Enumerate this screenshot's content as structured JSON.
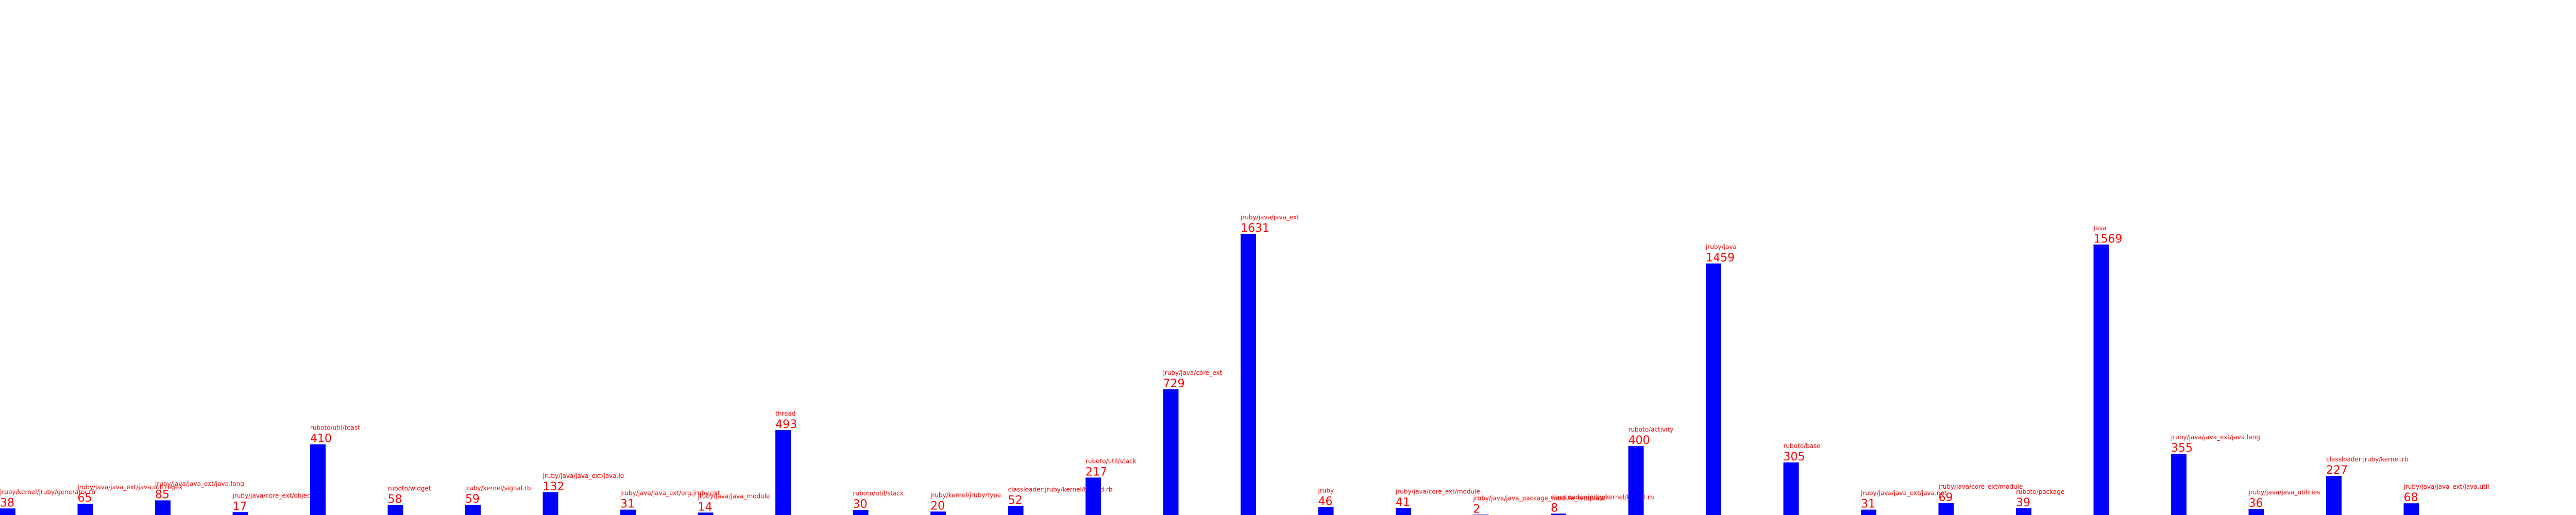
{
  "chart_data": {
    "type": "bar",
    "categories": [
      "jruby/kernel/jruby/generator.rb",
      "jruby/java/java_ext/java.util.regex",
      "jruby/java/java_ext/java.lang",
      "jruby/java/core_ext/object",
      "ruboto/util/toast",
      "ruboto/widget",
      "jruby/kernel/signal.rb",
      "jruby/java/java_ext/java.io",
      "jruby/java/java_ext/org.jruby.ext",
      "jruby/java/java_module",
      "thread",
      "ruboto/util/stack",
      "jruby/kernel/jruby/type",
      "classloader:jruby/kernel/thread.rb",
      "ruboto/util/stack",
      "jruby/java/core_ext",
      "jruby/java/java_ext",
      "jruby",
      "jruby/java/core_ext/module",
      "jruby/java/java_package_module_template",
      "classloader:jruby/kernel/kernel.rb",
      "ruboto/activity",
      "jruby/java",
      "ruboto/base",
      "jruby/java/java_ext/java.net",
      "jruby/java/core_ext/module",
      "ruboto/package",
      "java",
      "jruby/java/java_ext/java.lang",
      "jruby/java/java_utilities",
      "classloader:jruby/kernel.rb",
      "jruby/java/java_ext/java.util"
    ],
    "series": [
      {
        "values": [
          38,
          65,
          85,
          17,
          410,
          58,
          59,
          132,
          31,
          14,
          493,
          30,
          20,
          52,
          217,
          729,
          1631,
          46,
          41,
          2,
          8,
          400,
          1459,
          305,
          31,
          69,
          39,
          1569,
          355,
          36,
          227,
          68
        ]
      }
    ],
    "bar_color": "#0000ff",
    "label_color": "#ff0000",
    "ylim": [
      0,
      1631
    ],
    "xlabel": "",
    "ylabel": "",
    "title": "",
    "grid": false,
    "legend": "none"
  }
}
